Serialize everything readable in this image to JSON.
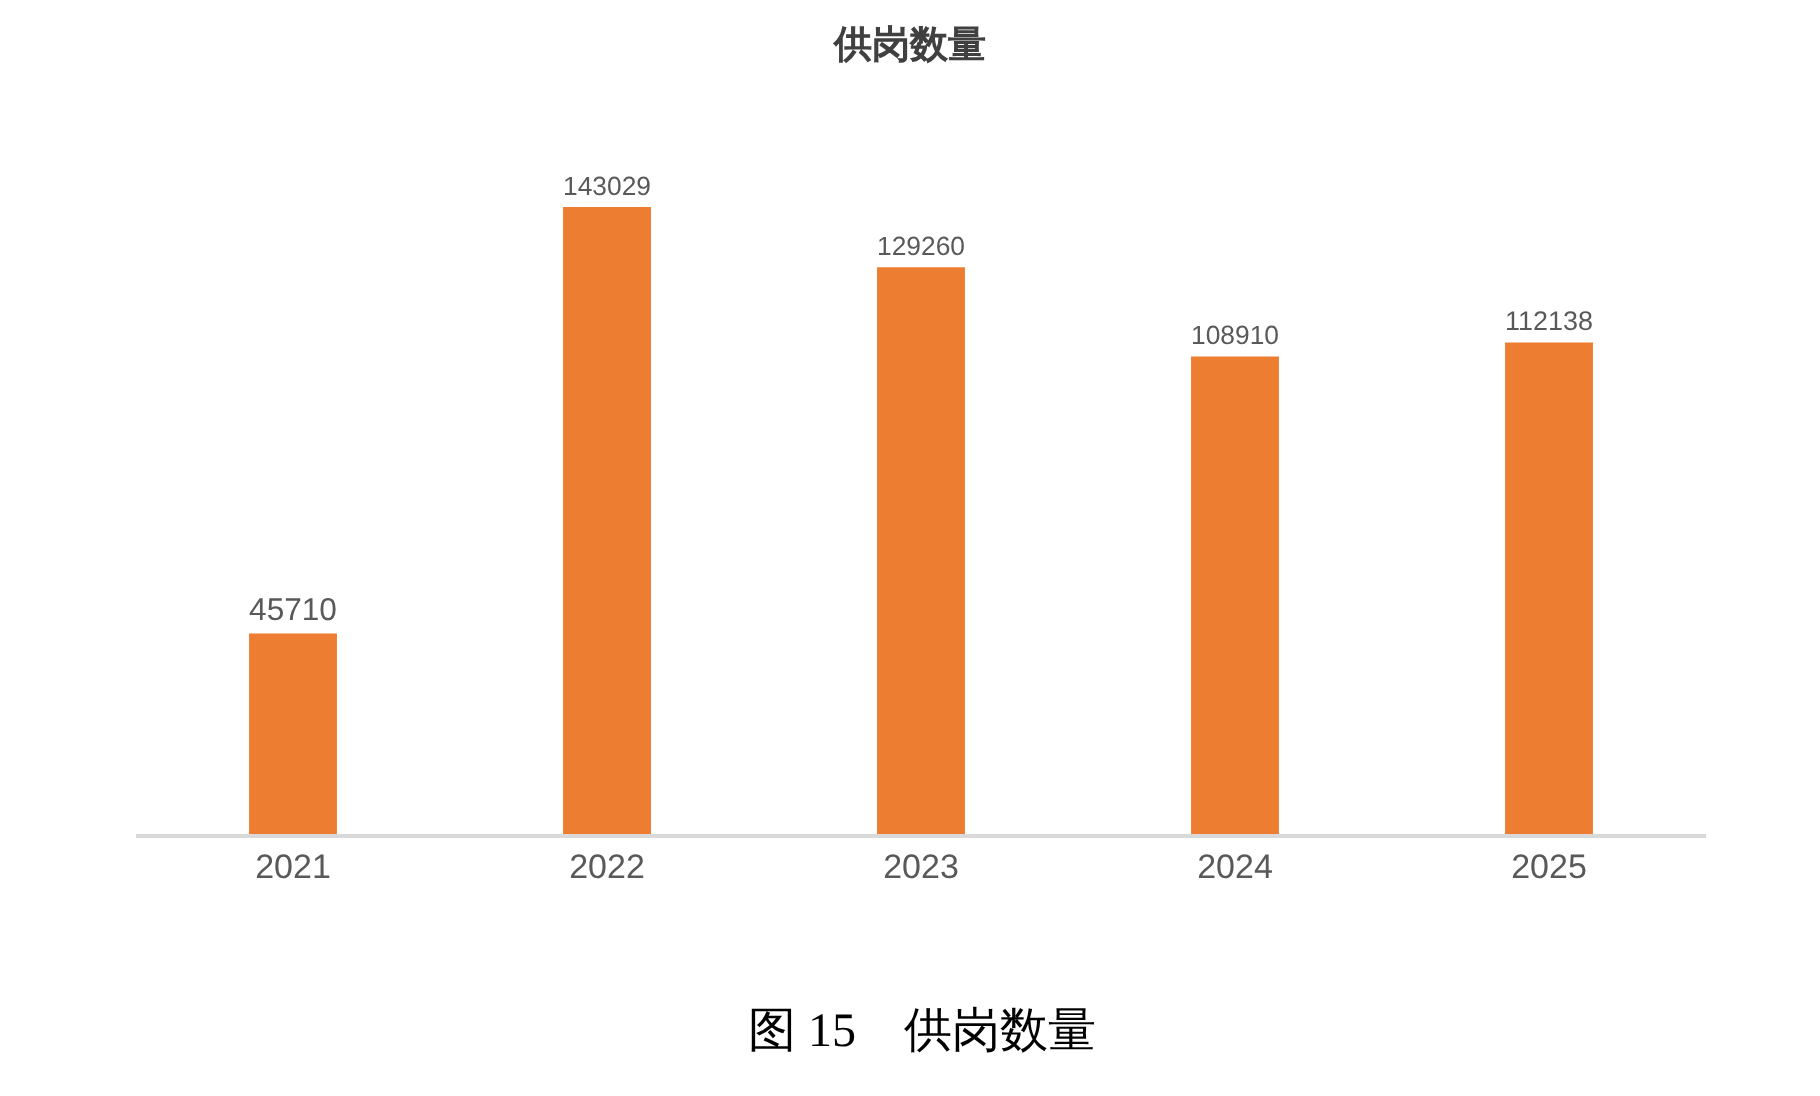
{
  "chart_data": {
    "type": "bar",
    "title": "供岗数量",
    "categories": [
      "2021",
      "2022",
      "2023",
      "2024",
      "2025"
    ],
    "values": [
      45710,
      143029,
      129260,
      108910,
      112138
    ],
    "color": "#ed7d31",
    "data_labels": true,
    "grid": false,
    "legend": false,
    "annotations": [
      "图 15　供岗数量"
    ]
  }
}
